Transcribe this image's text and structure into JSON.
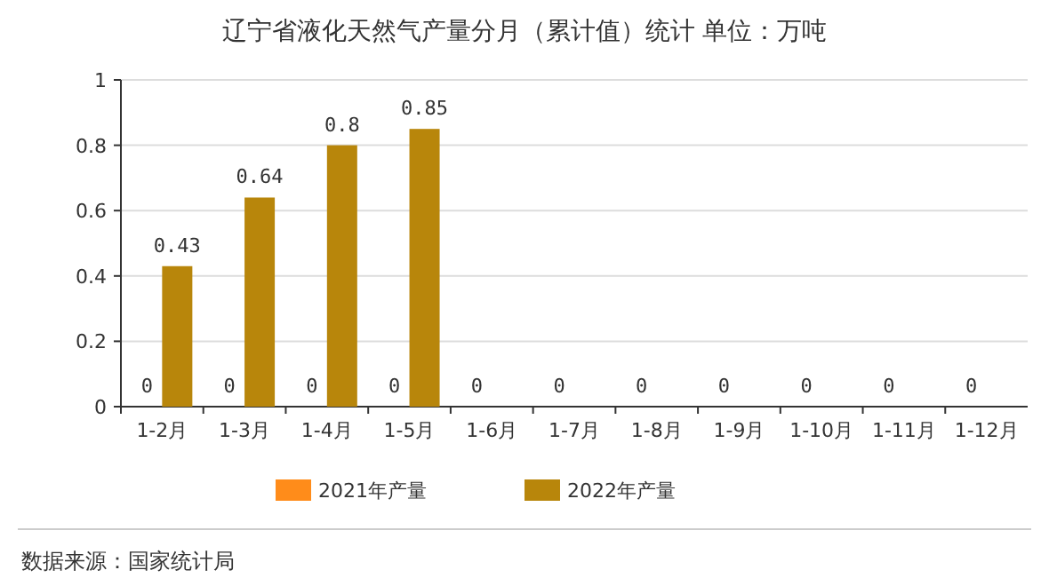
{
  "chart_data": {
    "type": "bar",
    "title": "辽宁省液化天然气产量分月（累计值）统计  单位：万吨",
    "categories": [
      "1-2月",
      "1-3月",
      "1-4月",
      "1-5月",
      "1-6月",
      "1-7月",
      "1-8月",
      "1-9月",
      "1-10月",
      "1-11月",
      "1-12月"
    ],
    "series": [
      {
        "name": "2021年产量",
        "color": "#ff8c1a",
        "values": [
          0,
          0,
          0,
          0,
          0,
          0,
          0,
          0,
          0,
          0,
          0
        ]
      },
      {
        "name": "2022年产量",
        "color": "#b8860b",
        "values": [
          0.43,
          0.64,
          0.8,
          0.85,
          null,
          null,
          null,
          null,
          null,
          null,
          null
        ]
      }
    ],
    "ylim": [
      0,
      1
    ],
    "yticks": [
      0,
      0.2,
      0.4,
      0.6,
      0.8,
      1
    ],
    "grid": "y",
    "legend": "bottom",
    "data_labels": true,
    "annotations": [
      "数据来源：国家统计局"
    ]
  }
}
